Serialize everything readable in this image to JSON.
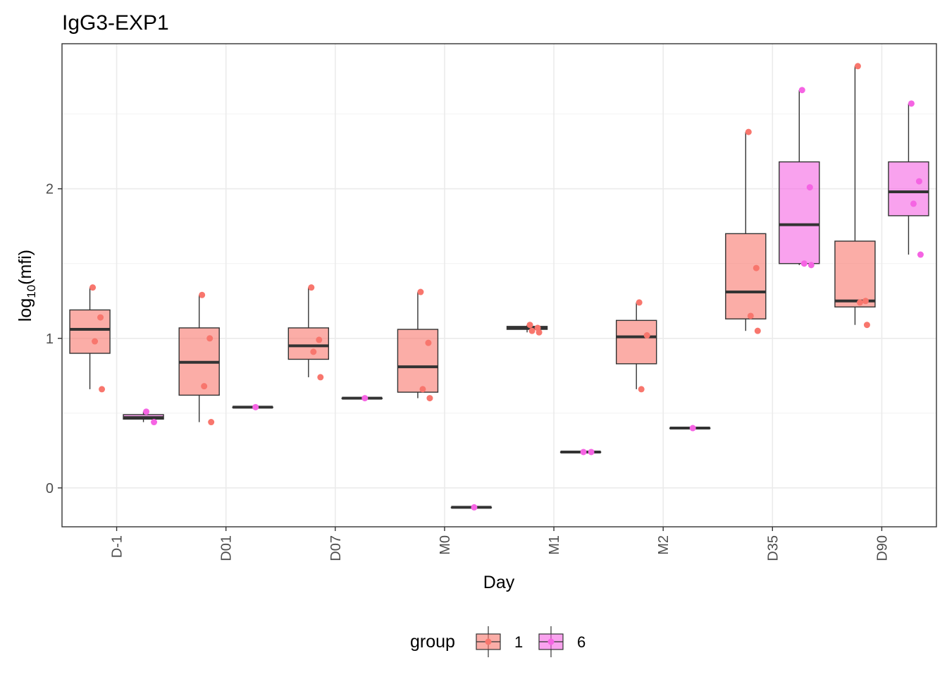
{
  "chart_data": {
    "type": "box",
    "title": "IgG3-EXP1",
    "xlabel": "Day",
    "ylabel_main": "log",
    "ylabel_sub": "10",
    "ylabel_paren": "(mfi)",
    "categories": [
      "D-1",
      "D01",
      "D07",
      "M0",
      "M1",
      "M2",
      "D35",
      "D90"
    ],
    "ylim": [
      -0.26,
      2.97
    ],
    "yticks": [
      0,
      1,
      2
    ],
    "grid": true,
    "legend": {
      "title": "group",
      "position": "bottom",
      "entries": [
        {
          "label": "1",
          "fill": "#f8766d",
          "point": "#f8766d"
        },
        {
          "label": "6",
          "fill": "#f564e3",
          "point": "#f564e3"
        }
      ]
    },
    "colors": {
      "group1": "#f8766d",
      "group6": "#f564e3",
      "box_line": "#333333"
    },
    "series": [
      {
        "name": "1",
        "boxes": [
          {
            "cat": "D-1",
            "min": 0.66,
            "q1": 0.9,
            "median": 1.06,
            "q3": 1.19,
            "max": 1.34,
            "points": [
              1.34,
              1.14,
              0.98,
              0.66
            ]
          },
          {
            "cat": "D01",
            "min": 0.44,
            "q1": 0.62,
            "median": 0.84,
            "q3": 1.07,
            "max": 1.29,
            "points": [
              1.29,
              1.0,
              0.68,
              0.44
            ]
          },
          {
            "cat": "D07",
            "min": 0.74,
            "q1": 0.86,
            "median": 0.95,
            "q3": 1.07,
            "max": 1.34,
            "points": [
              1.34,
              0.99,
              0.91,
              0.74
            ]
          },
          {
            "cat": "M0",
            "min": 0.6,
            "q1": 0.64,
            "median": 0.81,
            "q3": 1.06,
            "max": 1.31,
            "points": [
              1.31,
              0.97,
              0.66,
              0.6
            ]
          },
          {
            "cat": "M1",
            "min": 1.04,
            "q1": 1.06,
            "median": 1.07,
            "q3": 1.08,
            "max": 1.09,
            "points": [
              1.09,
              1.07,
              1.05,
              1.04
            ]
          },
          {
            "cat": "M2",
            "min": 0.66,
            "q1": 0.83,
            "median": 1.01,
            "q3": 1.12,
            "max": 1.24,
            "points": [
              1.24,
              1.02,
              0.66
            ]
          },
          {
            "cat": "D35",
            "min": 1.05,
            "q1": 1.13,
            "median": 1.31,
            "q3": 1.7,
            "max": 2.38,
            "points": [
              2.38,
              1.47,
              1.15,
              1.05
            ]
          },
          {
            "cat": "D90",
            "min": 1.09,
            "q1": 1.21,
            "median": 1.25,
            "q3": 1.65,
            "max": 2.82,
            "points": [
              2.82,
              1.25,
              1.24,
              1.09
            ]
          }
        ]
      },
      {
        "name": "6",
        "boxes": [
          {
            "cat": "D-1",
            "min": 0.44,
            "q1": 0.46,
            "median": 0.47,
            "q3": 0.49,
            "max": 0.51,
            "points": [
              0.51,
              0.44
            ]
          },
          {
            "cat": "D01",
            "min": 0.54,
            "q1": 0.54,
            "median": 0.54,
            "q3": 0.54,
            "max": 0.54,
            "points": [
              0.54
            ]
          },
          {
            "cat": "D07",
            "min": 0.6,
            "q1": 0.6,
            "median": 0.6,
            "q3": 0.6,
            "max": 0.6,
            "points": [
              0.6
            ]
          },
          {
            "cat": "M0",
            "min": -0.13,
            "q1": -0.13,
            "median": -0.13,
            "q3": -0.13,
            "max": -0.13,
            "points": [
              -0.13
            ]
          },
          {
            "cat": "M1",
            "min": 0.24,
            "q1": 0.24,
            "median": 0.24,
            "q3": 0.24,
            "max": 0.24,
            "points": [
              0.24,
              0.24
            ]
          },
          {
            "cat": "M2",
            "min": 0.4,
            "q1": 0.4,
            "median": 0.4,
            "q3": 0.4,
            "max": 0.4,
            "points": [
              0.4
            ]
          },
          {
            "cat": "D35",
            "min": 1.49,
            "q1": 1.5,
            "median": 1.76,
            "q3": 2.18,
            "max": 2.66,
            "points": [
              2.66,
              2.01,
              1.5,
              1.49
            ]
          },
          {
            "cat": "D90",
            "min": 1.56,
            "q1": 1.82,
            "median": 1.98,
            "q3": 2.18,
            "max": 2.57,
            "points": [
              2.57,
              2.05,
              1.9,
              1.56
            ]
          }
        ]
      }
    ]
  }
}
